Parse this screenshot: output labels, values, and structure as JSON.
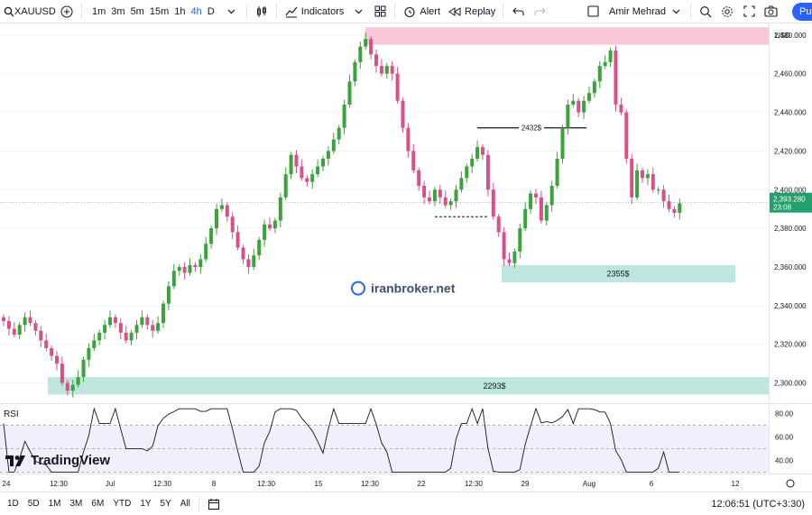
{
  "toolbar": {
    "symbol": "XAUUSD",
    "timeframes": [
      "1m",
      "3m",
      "5m",
      "15m",
      "1h",
      "4h",
      "D"
    ],
    "active_timeframe": "4h",
    "indicators_label": "Indicators",
    "alert_label": "Alert",
    "replay_label": "Replay",
    "user_name": "Amir Mehrad",
    "publish_label": "Pu"
  },
  "chart": {
    "currency": "USD",
    "watermark": "iranbroker.net",
    "zone_high_label": "",
    "zone_mid_label": "2355$",
    "zone_low_label": "2293$",
    "line_label": "2432$",
    "current_price": "2,393.280",
    "countdown": "23:08",
    "price_ticks": [
      "2,480.000",
      "2,460.000",
      "2,440.000",
      "2,420.000",
      "2,400.000",
      "2,380.000",
      "2,360.000",
      "2,340.000",
      "2,320.000",
      "2,300.000"
    ],
    "colors": {
      "up": "#26a69a",
      "down": "#e2598b",
      "up_candle": "#3aa33a",
      "down_candle": "#d94f88",
      "zone_red": "#f8c8d8",
      "zone_green": "#bfe6de",
      "price_tag": "#22a06b"
    }
  },
  "rsi": {
    "label": "RSI",
    "ticks": [
      "80.00",
      "60.00",
      "40.00"
    ]
  },
  "logo": {
    "text": "TradingView"
  },
  "time_axis": {
    "labels": [
      "24",
      "12:30",
      "Jul",
      "12:30",
      "8",
      "12:30",
      "15",
      "12:30",
      "22",
      "12:30",
      "29",
      "12:30",
      "Aug",
      "6",
      "12"
    ]
  },
  "bottom": {
    "ranges": [
      "1D",
      "5D",
      "1M",
      "3M",
      "6M",
      "YTD",
      "1Y",
      "5Y",
      "All"
    ],
    "clock": "12:06:51 (UTC+3:30)"
  },
  "chart_data": {
    "type": "candlestick",
    "ylim": [
      2290,
      2486
    ],
    "closes": [
      2332,
      2328,
      2325,
      2330,
      2334,
      2331,
      2327,
      2322,
      2318,
      2314,
      2310,
      2300,
      2296,
      2299,
      2303,
      2312,
      2318,
      2322,
      2326,
      2330,
      2334,
      2331,
      2326,
      2322,
      2326,
      2330,
      2334,
      2330,
      2327,
      2331,
      2341,
      2350,
      2358,
      2360,
      2357,
      2361,
      2360,
      2364,
      2372,
      2380,
      2390,
      2392,
      2386,
      2378,
      2370,
      2364,
      2360,
      2366,
      2374,
      2382,
      2380,
      2384,
      2396,
      2408,
      2418,
      2412,
      2406,
      2404,
      2408,
      2412,
      2416,
      2420,
      2426,
      2432,
      2444,
      2456,
      2466,
      2474,
      2478,
      2470,
      2464,
      2460,
      2464,
      2460,
      2446,
      2432,
      2420,
      2410,
      2402,
      2396,
      2394,
      2400,
      2396,
      2392,
      2394,
      2400,
      2406,
      2412,
      2416,
      2422,
      2418,
      2400,
      2386,
      2378,
      2364,
      2362,
      2368,
      2380,
      2390,
      2398,
      2396,
      2384,
      2392,
      2402,
      2416,
      2432,
      2444,
      2446,
      2440,
      2446,
      2450,
      2456,
      2464,
      2466,
      2472,
      2444,
      2440,
      2416,
      2396,
      2410,
      2406,
      2408,
      2400,
      2400,
      2394,
      2390,
      2388,
      2393
    ]
  }
}
